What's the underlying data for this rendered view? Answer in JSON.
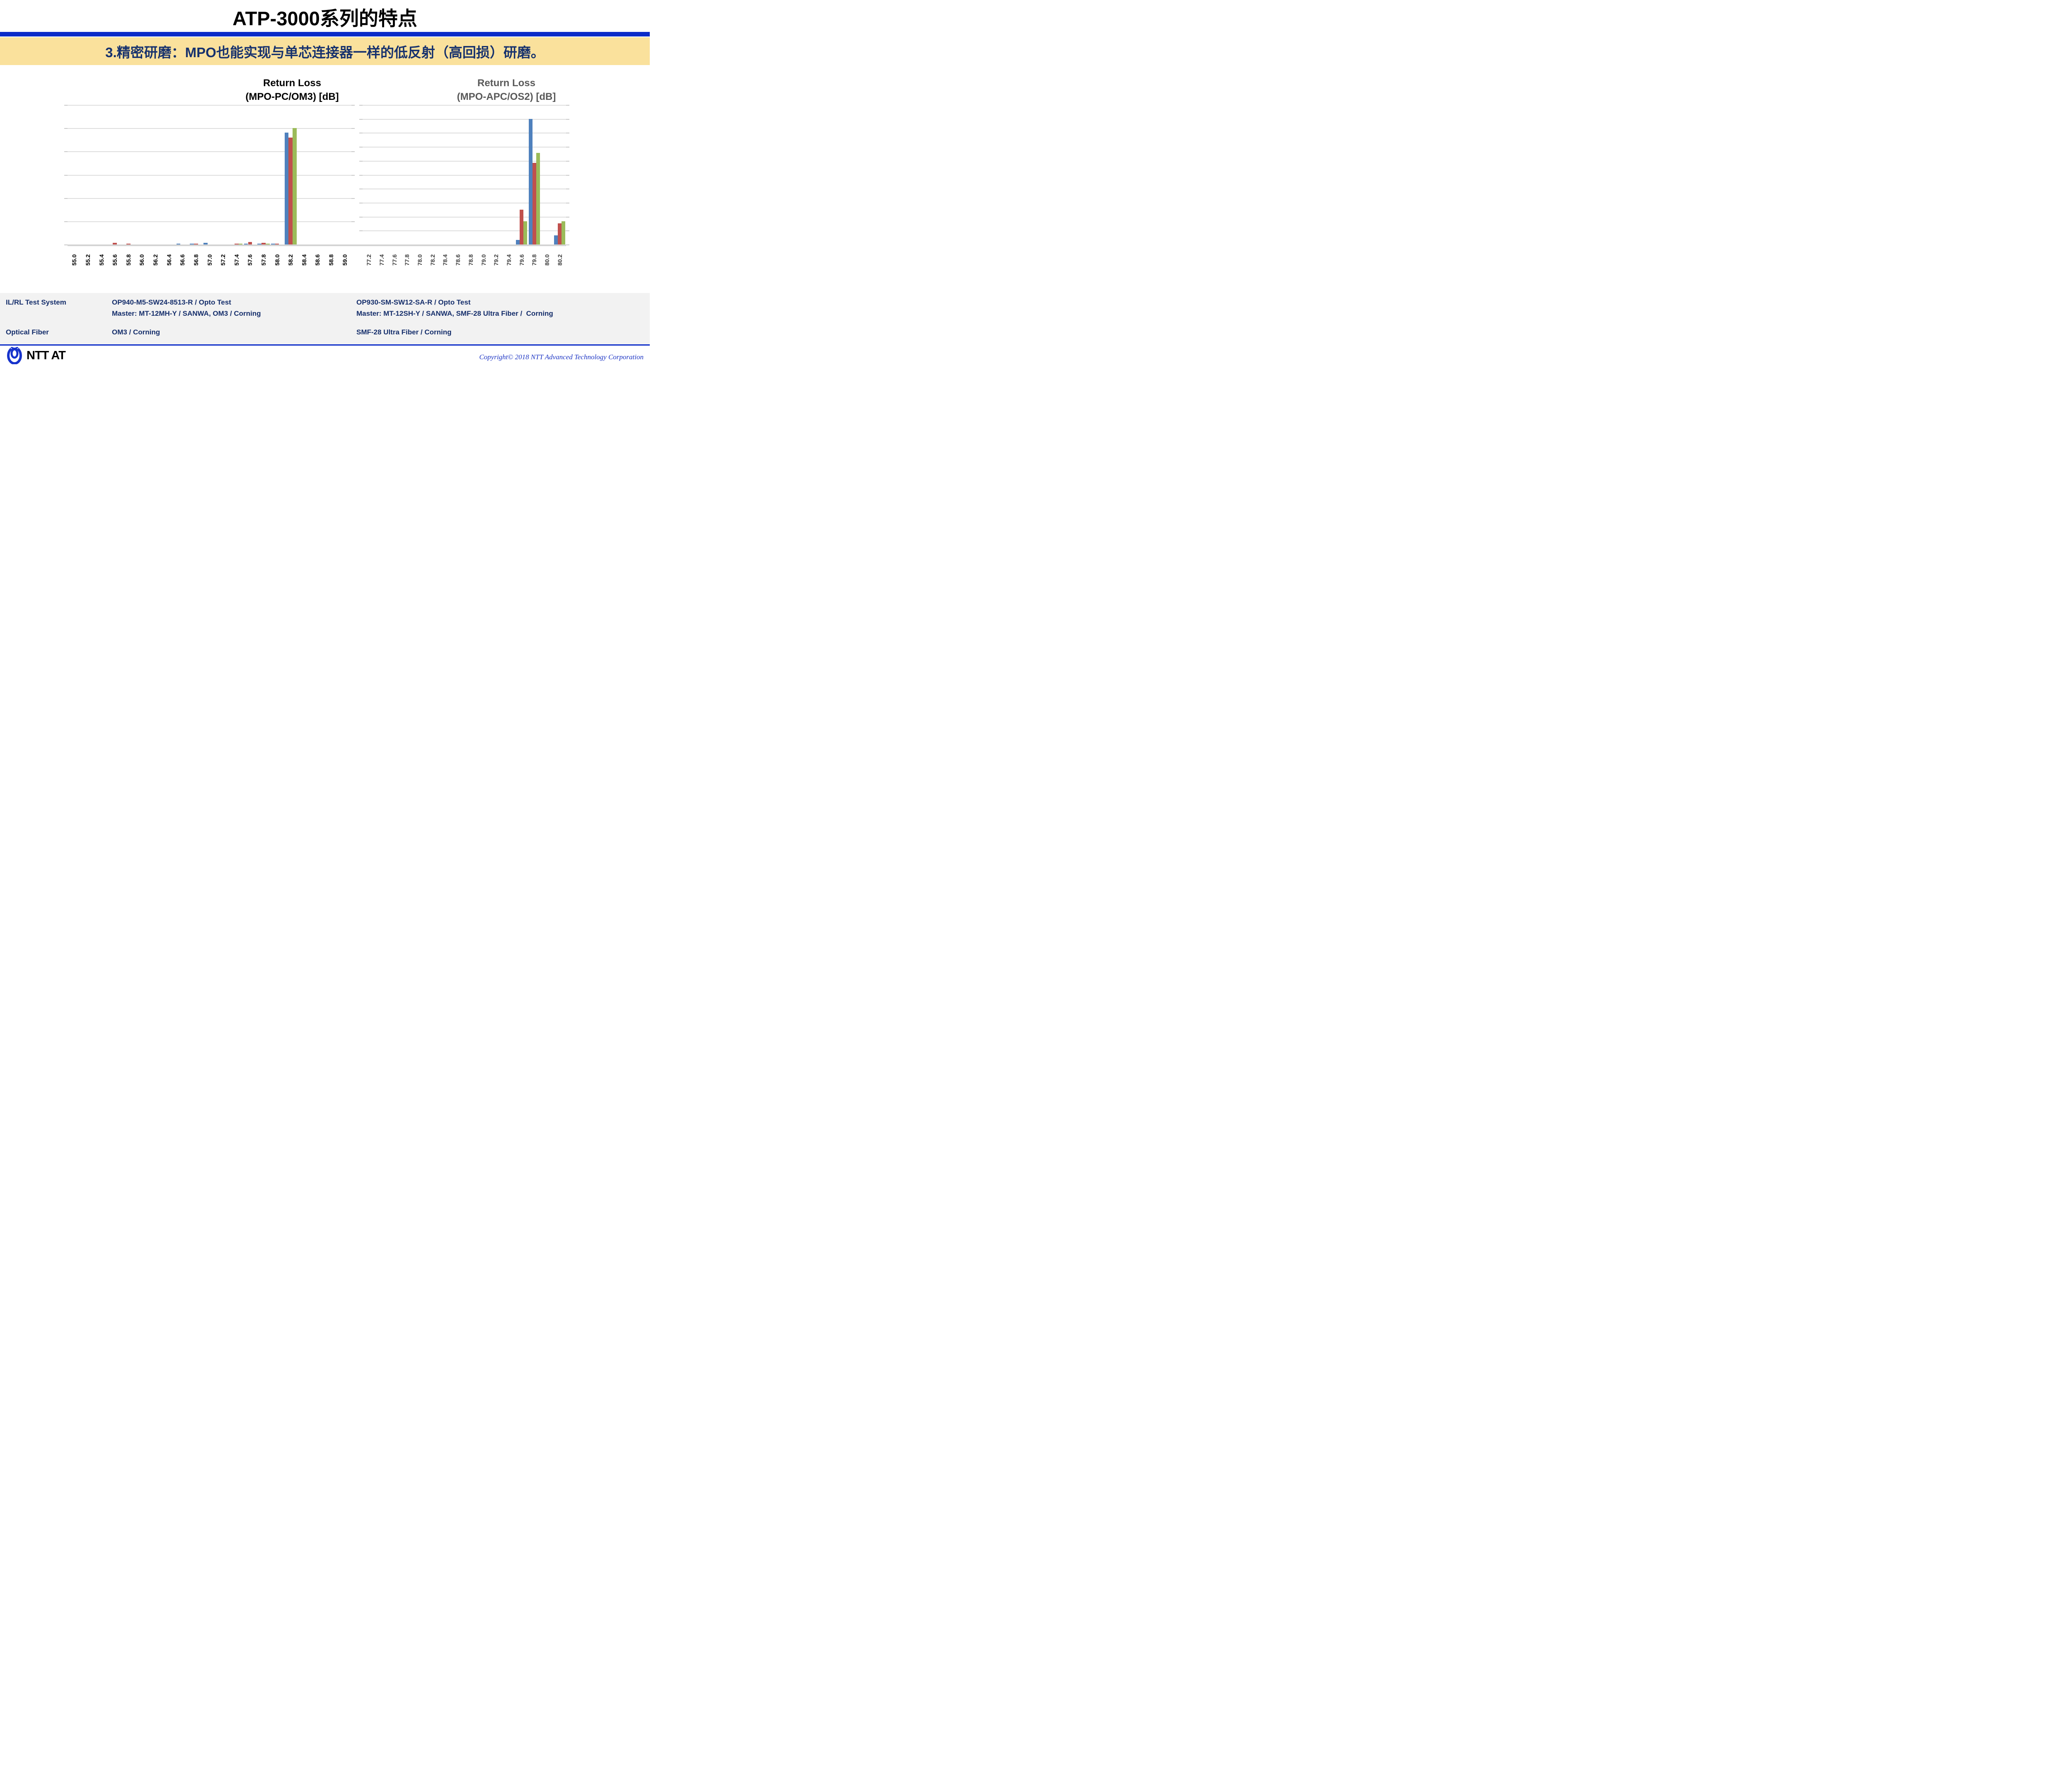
{
  "page_title": "ATP-3000系列的特点",
  "divider_color": "#0b2bc8",
  "banner": {
    "text": "3.精密研磨：MPO也能实现与单芯连接器一样的低反射（高回损）研磨。",
    "bg_color": "#fae19c",
    "text_color": "#16316d"
  },
  "chart_data": [
    {
      "type": "bar",
      "title_lines": [
        "Return Loss",
        "(MPO-PC/OM3) [dB]"
      ],
      "title_color": "#000000",
      "axis_label_color": "#000000",
      "xlabel": "Return Loss (MPO-PC/OM3) [dB]",
      "ylabel": "",
      "categories": [
        "55.0",
        "55.2",
        "55.4",
        "55.6",
        "55.8",
        "56.0",
        "56.2",
        "56.4",
        "56.6",
        "56.8",
        "57.0",
        "57.2",
        "57.4",
        "57.6",
        "57.8",
        "58.0",
        "58.2",
        "58.4",
        "58.6",
        "58.8",
        "59.0"
      ],
      "series": [
        {
          "name": "blue",
          "color": "#4F81BD",
          "values": [
            0,
            0,
            0,
            0,
            0,
            0,
            0,
            0,
            0.03,
            0.03,
            0.065,
            0,
            0,
            0.03,
            0.03,
            0.03,
            4.8,
            0,
            0,
            0,
            0
          ]
        },
        {
          "name": "red",
          "color": "#C0504D",
          "values": [
            0,
            0,
            0,
            0.075,
            0.035,
            0,
            0,
            0,
            0,
            0.035,
            0,
            0,
            0.035,
            0.11,
            0.07,
            0.04,
            4.6,
            0,
            0,
            0,
            0
          ]
        },
        {
          "name": "green",
          "color": "#9BBB59",
          "values": [
            0,
            0,
            0,
            0,
            0,
            0,
            0,
            0,
            0,
            0,
            0,
            0,
            0.03,
            0,
            0.03,
            0,
            5.0,
            0,
            0,
            0,
            0
          ]
        }
      ],
      "ylim": [
        0,
        6
      ],
      "y_gridline_interval": 1,
      "grid": true,
      "legend": "none",
      "y_axis_labels_shown": false
    },
    {
      "type": "bar",
      "title_lines": [
        "Return Loss",
        "(MPO-APC/OS2) [dB]"
      ],
      "title_color": "#595959",
      "axis_label_color": "#404040",
      "xlabel": "Return Loss (MPO-APC/OS2) [dB]",
      "ylabel": "",
      "categories": [
        "77.2",
        "77.4",
        "77.6",
        "77.8",
        "78.0",
        "78.2",
        "78.4",
        "78.6",
        "78.8",
        "79.0",
        "79.2",
        "79.4",
        "79.6",
        "79.8",
        "80.0",
        "80.2"
      ],
      "series": [
        {
          "name": "blue",
          "color": "#4F81BD",
          "values": [
            0,
            0,
            0,
            0,
            0,
            0,
            0,
            0,
            0,
            0,
            0,
            0,
            0.32,
            9.0,
            0,
            0.65
          ]
        },
        {
          "name": "red",
          "color": "#C0504D",
          "values": [
            0,
            0,
            0,
            0,
            0,
            0,
            0,
            0,
            0,
            0,
            0,
            0,
            2.5,
            5.85,
            0,
            1.52
          ]
        },
        {
          "name": "green",
          "color": "#9BBB59",
          "values": [
            0,
            0,
            0,
            0,
            0,
            0,
            0,
            0,
            0,
            0,
            0,
            0,
            1.65,
            6.55,
            0,
            1.65
          ]
        }
      ],
      "ylim": [
        0,
        10
      ],
      "y_gridline_interval": 1,
      "grid": true,
      "legend": "none",
      "y_axis_labels_shown": false
    }
  ],
  "table": {
    "rows": [
      {
        "label": "IL/RL Test System",
        "left_value_lines": [
          "OP940-M5-SW24-8513-R / Opto Test",
          "Master: MT-12MH-Y / SANWA, OM3 / Corning"
        ],
        "right_value_lines": [
          "OP930-SM-SW12-SA-R / Opto Test",
          "Master: MT-12SH-Y / SANWA, SMF-28 Ultra Fiber /  Corning"
        ]
      },
      {
        "label": "Optical Fiber",
        "left_value_lines": [
          "OM3 / Corning"
        ],
        "right_value_lines": [
          "SMF-28 Ultra Fiber / Corning"
        ]
      }
    ]
  },
  "footer": {
    "logo_text": "NTT AT",
    "logo_color": "#1733cc",
    "copyright": "Copyright© 2018 NTT Advanced Technology Corporation",
    "copyright_color": "#1d35c4",
    "line_color": "#0b2bc8"
  }
}
